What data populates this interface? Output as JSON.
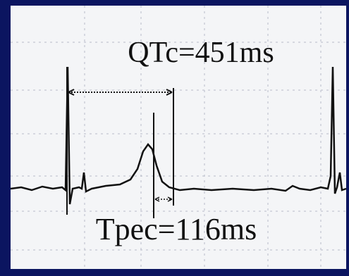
{
  "annotations": {
    "qtc": "QTc=451ms",
    "tpec": "Tpec=116ms"
  }
}
